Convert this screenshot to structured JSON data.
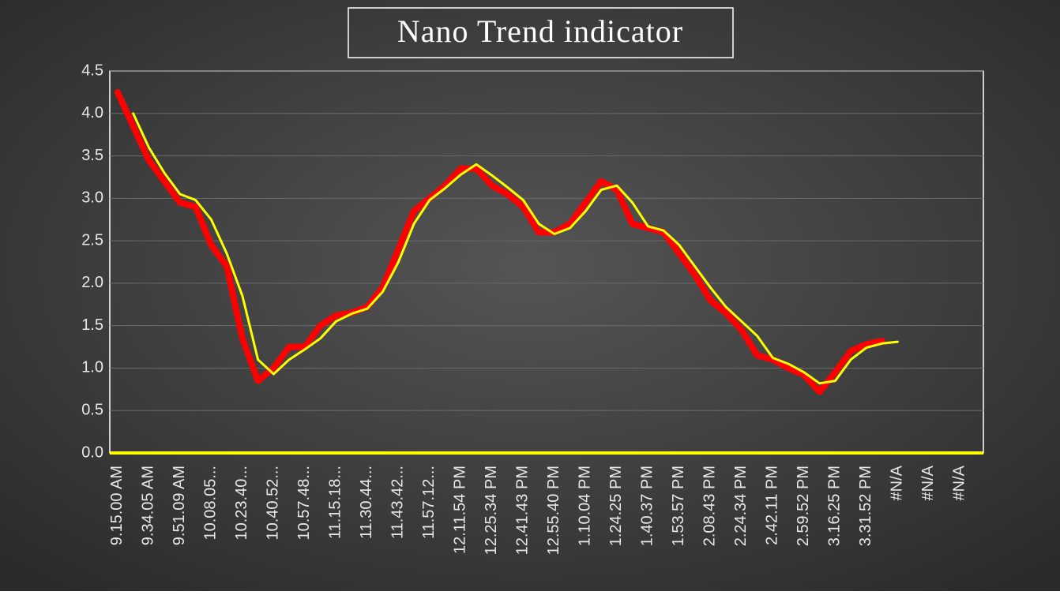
{
  "chart_data": {
    "type": "line",
    "title": "Nano Trend indicator",
    "categories": [
      "9.15.00 AM",
      null,
      "9.34.05 AM",
      null,
      "9.51.09 AM",
      null,
      "10.08.05...",
      null,
      "10.23.40...",
      null,
      "10.40.52...",
      null,
      "10.57.48...",
      null,
      "11.15.18...",
      null,
      "11.30.44...",
      null,
      "11.43.42...",
      null,
      "11.57.12...",
      null,
      "12.11.54 PM",
      null,
      "12.25.34 PM",
      null,
      "12.41.43 PM",
      null,
      "12.55.40 PM",
      null,
      "1.10.04 PM",
      null,
      "1.24.25 PM",
      null,
      "1.40.37 PM",
      null,
      "1.53.57 PM",
      null,
      "2.08.43 PM",
      null,
      "2.24.34 PM",
      null,
      "2.42.11 PM",
      null,
      "2.59.52 PM",
      null,
      "3.16.25 PM",
      null,
      "3.31.52 PM",
      null,
      "#N/A",
      null,
      "#N/A",
      null,
      "#N/A",
      null
    ],
    "series": [
      {
        "color": "#ff0000",
        "values": [
          4.25,
          3.85,
          3.45,
          3.2,
          2.95,
          2.9,
          2.45,
          2.2,
          1.35,
          0.85,
          1.0,
          1.25,
          1.25,
          1.5,
          1.62,
          1.65,
          1.72,
          1.95,
          2.4,
          2.85,
          3.0,
          3.15,
          3.35,
          3.35,
          3.15,
          3.05,
          2.9,
          2.6,
          2.6,
          2.7,
          2.95,
          3.2,
          3.1,
          2.7,
          2.65,
          2.6,
          2.35,
          2.1,
          1.8,
          1.65,
          1.45,
          1.15,
          1.1,
          1.0,
          0.92,
          0.72,
          0.95,
          1.2,
          1.28,
          1.32,
          null,
          null,
          null,
          null,
          null,
          null
        ]
      },
      {
        "color": "#ffff00",
        "values": [
          null,
          4.0,
          3.6,
          3.3,
          3.05,
          2.98,
          2.75,
          2.35,
          1.85,
          1.1,
          0.93,
          1.1,
          1.22,
          1.35,
          1.55,
          1.64,
          1.7,
          1.9,
          2.25,
          2.7,
          2.98,
          3.12,
          3.28,
          3.4,
          3.27,
          3.13,
          2.98,
          2.7,
          2.58,
          2.65,
          2.85,
          3.1,
          3.15,
          2.95,
          2.67,
          2.62,
          2.45,
          2.2,
          1.95,
          1.72,
          1.55,
          1.38,
          1.12,
          1.05,
          0.95,
          0.82,
          0.85,
          1.1,
          1.24,
          1.29,
          1.31,
          null,
          null,
          null,
          null,
          null
        ]
      }
    ],
    "ylim": [
      0,
      4.5
    ],
    "yticks": [
      {
        "value": 0,
        "label": "0.0"
      },
      0.5,
      {
        "value": 1,
        "label": "1.0"
      },
      1.5,
      {
        "value": 2,
        "label": "2.0"
      },
      2.5,
      {
        "value": 3,
        "label": "3.0"
      },
      3.5,
      {
        "value": 4,
        "label": "4.0"
      },
      4.5
    ],
    "grid": true,
    "axis_color": "#ffff00"
  }
}
